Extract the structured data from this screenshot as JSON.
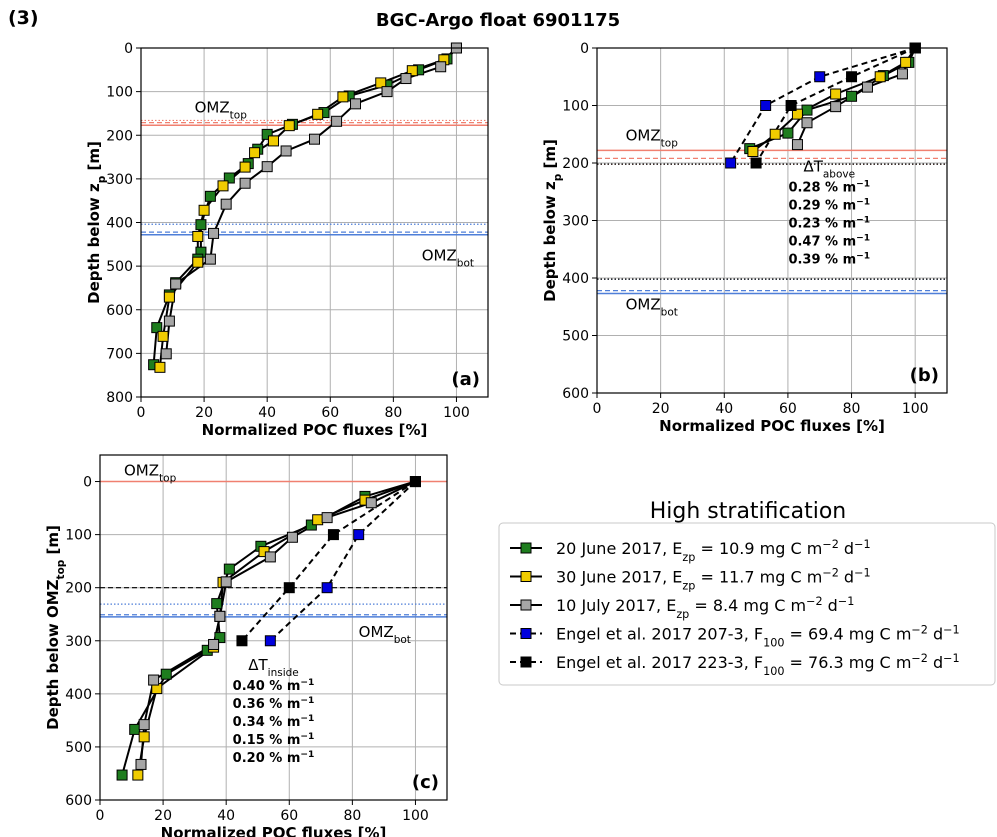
{
  "figure": {
    "panel_number": "(3)",
    "title": "BGC-Argo float 6901175",
    "colors": {
      "green": "#1e7d1e",
      "gold": "#f0cc00",
      "grey": "#a6a6a6",
      "blue": "#0000dd",
      "black": "#000000",
      "omz_red": "#f08070",
      "omz_blue": "#4f7fd8"
    }
  },
  "legend": {
    "title": "High stratification",
    "entries": [
      {
        "label": "20 June 2017, E",
        "sub": "zp",
        "rest": " = 10.9 mg C m",
        "sup": "−2",
        "tail": " d",
        "sup2": "−1",
        "color": "#1e7d1e",
        "style": "solid"
      },
      {
        "label": "30 June 2017, E",
        "sub": "zp",
        "rest": " = 11.7 mg C m",
        "sup": "−2",
        "tail": " d",
        "sup2": "−1",
        "color": "#f0cc00",
        "style": "solid"
      },
      {
        "label": "10 July 2017, E",
        "sub": "zp",
        "rest": " = 8.4 mg C m",
        "sup": "−2",
        "tail": " d",
        "sup2": "−1",
        "color": "#a6a6a6",
        "style": "solid"
      },
      {
        "label": "Engel et al. 2017 207-3, F",
        "sub": "100",
        "rest": " = 69.4 mg C m",
        "sup": "−2",
        "tail": " d",
        "sup2": "−1",
        "color": "#0000dd",
        "style": "dashed"
      },
      {
        "label": "Engel et al. 2017 223-3, F",
        "sub": "100",
        "rest": " = 76.3 mg C m",
        "sup": "−2",
        "tail": " d",
        "sup2": "−1",
        "color": "#000000",
        "style": "dashed"
      }
    ]
  },
  "chart_data": [
    {
      "type": "line",
      "panel_label": "(a)",
      "xlabel": "Normalized POC fluxes [%]",
      "ylabel_main": "Depth below z",
      "ylabel_sub": "p",
      "ylabel_tail": " [m]",
      "xlim": [
        0,
        110
      ],
      "ylim": [
        800,
        0
      ],
      "xticks": [
        0,
        20,
        40,
        60,
        80,
        100
      ],
      "yticks": [
        0,
        100,
        200,
        300,
        400,
        500,
        600,
        700,
        800
      ],
      "grid": true,
      "omz_top_label": "OMZ",
      "omz_top_sub": "top",
      "omz_bot_label": "OMZ",
      "omz_bot_sub": "bot",
      "omz_top": {
        "solid": 177,
        "dashed": 171,
        "dotted": 166
      },
      "omz_bot": {
        "solid": 428,
        "dashed": 422,
        "dotted": 404
      },
      "series": [
        {
          "color": "#1e7d1e",
          "style": "solid",
          "points": [
            [
              100,
              0
            ],
            [
              97,
              25
            ],
            [
              88,
              50
            ],
            [
              78,
              85
            ],
            [
              66,
              110
            ],
            [
              58,
              148
            ],
            [
              48,
              175
            ],
            [
              40,
              198
            ],
            [
              37,
              232
            ],
            [
              34,
              265
            ],
            [
              28,
              298
            ],
            [
              22,
              340
            ],
            [
              19,
              405
            ],
            [
              19,
              468
            ],
            [
              18,
              484
            ],
            [
              11,
              538
            ],
            [
              9,
              566
            ],
            [
              5,
              641
            ],
            [
              4,
              726
            ]
          ]
        },
        {
          "color": "#f0cc00",
          "style": "solid",
          "points": [
            [
              100,
              0
            ],
            [
              96,
              27
            ],
            [
              86,
              52
            ],
            [
              76,
              80
            ],
            [
              64,
              112
            ],
            [
              56,
              152
            ],
            [
              47,
              178
            ],
            [
              42,
              213
            ],
            [
              36,
              240
            ],
            [
              33,
              273
            ],
            [
              26,
              316
            ],
            [
              20,
              372
            ],
            [
              18,
              432
            ],
            [
              18,
              491
            ],
            [
              9,
              571
            ],
            [
              7,
              661
            ],
            [
              6,
              732
            ]
          ]
        },
        {
          "color": "#a6a6a6",
          "style": "solid",
          "points": [
            [
              100,
              0
            ],
            [
              95,
              43
            ],
            [
              84,
              70
            ],
            [
              78,
              100
            ],
            [
              68,
              128
            ],
            [
              62,
              168
            ],
            [
              55,
              209
            ],
            [
              46,
              236
            ],
            [
              40,
              272
            ],
            [
              33,
              310
            ],
            [
              27,
              358
            ],
            [
              23,
              425
            ],
            [
              22,
              484
            ],
            [
              11,
              541
            ],
            [
              9,
              626
            ],
            [
              8,
              701
            ]
          ]
        },
        {
          "color": "#0000dd",
          "style": "dashed",
          "points": []
        },
        {
          "color": "#000000",
          "style": "dashed",
          "points": []
        }
      ]
    },
    {
      "type": "line",
      "panel_label": "(b)",
      "xlabel": "Normalized POC fluxes [%]",
      "ylabel_main": "Depth below z",
      "ylabel_sub": "p",
      "ylabel_tail": " [m]",
      "xlim": [
        0,
        110
      ],
      "ylim": [
        600,
        0
      ],
      "xticks": [
        0,
        20,
        40,
        60,
        80,
        100
      ],
      "yticks": [
        0,
        100,
        200,
        300,
        400,
        500,
        600
      ],
      "grid": true,
      "omz_top_label": "OMZ",
      "omz_top_sub": "top",
      "omz_bot_label": "OMZ",
      "omz_bot_sub": "bot",
      "omz_top": {
        "solid": 178,
        "dashed": 192,
        "dotted": 202
      },
      "omz_bot": {
        "solid": 427,
        "dashed": 422,
        "dotted": 402
      },
      "delta_label": "ΔT",
      "delta_sub": "above",
      "rates": [
        {
          "text": "0.28 % m",
          "sup": "−1",
          "color": "#1e7d1e"
        },
        {
          "text": "0.29 % m",
          "sup": "−1",
          "color": "#f0cc00"
        },
        {
          "text": "0.23 % m",
          "sup": "−1",
          "color": "#a6a6a6"
        },
        {
          "text": "0.47 % m",
          "sup": "−1",
          "color": "#0000dd"
        },
        {
          "text": "0.39 % m",
          "sup": "−1",
          "color": "#000000"
        }
      ],
      "series": [
        {
          "color": "#1e7d1e",
          "style": "solid",
          "points": [
            [
              100,
              0
            ],
            [
              98,
              25
            ],
            [
              90,
              48
            ],
            [
              80,
              84
            ],
            [
              66,
              108
            ],
            [
              60,
              148
            ],
            [
              48,
              175
            ]
          ]
        },
        {
          "color": "#f0cc00",
          "style": "solid",
          "points": [
            [
              100,
              0
            ],
            [
              97,
              25
            ],
            [
              89,
              50
            ],
            [
              75,
              80
            ],
            [
              63,
              115
            ],
            [
              56,
              150
            ],
            [
              49,
              180
            ]
          ]
        },
        {
          "color": "#a6a6a6",
          "style": "solid",
          "points": [
            [
              100,
              0
            ],
            [
              96,
              45
            ],
            [
              85,
              68
            ],
            [
              75,
              102
            ],
            [
              66,
              130
            ],
            [
              63,
              168
            ]
          ]
        },
        {
          "color": "#0000dd",
          "style": "dashed",
          "points": [
            [
              100,
              0
            ],
            [
              70,
              50
            ],
            [
              53,
              100
            ],
            [
              42,
              200
            ]
          ]
        },
        {
          "color": "#000000",
          "style": "dashed",
          "points": [
            [
              100,
              0
            ],
            [
              80,
              50
            ],
            [
              61,
              100
            ],
            [
              50,
              200
            ]
          ]
        }
      ]
    },
    {
      "type": "line",
      "panel_label": "(c)",
      "xlabel": "Normalized POC fluxes [%]",
      "ylabel_main": "Depth below OMZ",
      "ylabel_sub": "top",
      "ylabel_tail": " [m]",
      "xlim": [
        0,
        110
      ],
      "ylim": [
        600,
        -50
      ],
      "xticks": [
        0,
        20,
        40,
        60,
        80,
        100
      ],
      "yticks": [
        0,
        100,
        200,
        300,
        400,
        500,
        600
      ],
      "grid": true,
      "omz_top_label": "OMZ",
      "omz_top_sub": "top",
      "omz_bot_label": "OMZ",
      "omz_bot_sub": "bot",
      "omz_top": {
        "solid": 0
      },
      "omz_bot": {
        "solid": 255,
        "dashed": 251,
        "dotted": 231,
        "black_dashed": 200
      },
      "delta_label": "ΔT",
      "delta_sub": "inside",
      "rates": [
        {
          "text": "0.40 % m",
          "sup": "−1",
          "color": "#1e7d1e"
        },
        {
          "text": "0.36 % m",
          "sup": "−1",
          "color": "#f0cc00"
        },
        {
          "text": "0.34 % m",
          "sup": "−1",
          "color": "#a6a6a6"
        },
        {
          "text": "0.15 % m",
          "sup": "−1",
          "color": "#0000dd"
        },
        {
          "text": "0.20 % m",
          "sup": "−1",
          "color": "#000000"
        }
      ],
      "series": [
        {
          "color": "#1e7d1e",
          "style": "solid",
          "points": [
            [
              100,
              0
            ],
            [
              84,
              28
            ],
            [
              67,
              82
            ],
            [
              51,
              122
            ],
            [
              41,
              165
            ],
            [
              37,
              230
            ],
            [
              38,
              294
            ],
            [
              34,
              318
            ],
            [
              21,
              363
            ],
            [
              11,
              467
            ],
            [
              7,
              553
            ]
          ]
        },
        {
          "color": "#f0cc00",
          "style": "solid",
          "points": [
            [
              100,
              0
            ],
            [
              84,
              35
            ],
            [
              69,
              72
            ],
            [
              52,
              132
            ],
            [
              39,
              190
            ],
            [
              38,
              254
            ],
            [
              36,
              312
            ],
            [
              18,
              390
            ],
            [
              14,
              481
            ],
            [
              12,
              553
            ]
          ]
        },
        {
          "color": "#a6a6a6",
          "style": "solid",
          "points": [
            [
              100,
              0
            ],
            [
              86,
              40
            ],
            [
              72,
              68
            ],
            [
              61,
              105
            ],
            [
              54,
              142
            ],
            [
              40,
              189
            ],
            [
              38,
              254
            ],
            [
              36,
              307
            ],
            [
              17,
              374
            ],
            [
              14,
              458
            ],
            [
              13,
              533
            ]
          ]
        },
        {
          "color": "#0000dd",
          "style": "dashed",
          "points": [
            [
              100,
              0
            ],
            [
              82,
              100
            ],
            [
              72,
              200
            ],
            [
              54,
              300
            ]
          ]
        },
        {
          "color": "#000000",
          "style": "dashed",
          "points": [
            [
              100,
              0
            ],
            [
              74,
              100
            ],
            [
              60,
              200
            ],
            [
              45,
              300
            ]
          ]
        }
      ]
    }
  ]
}
